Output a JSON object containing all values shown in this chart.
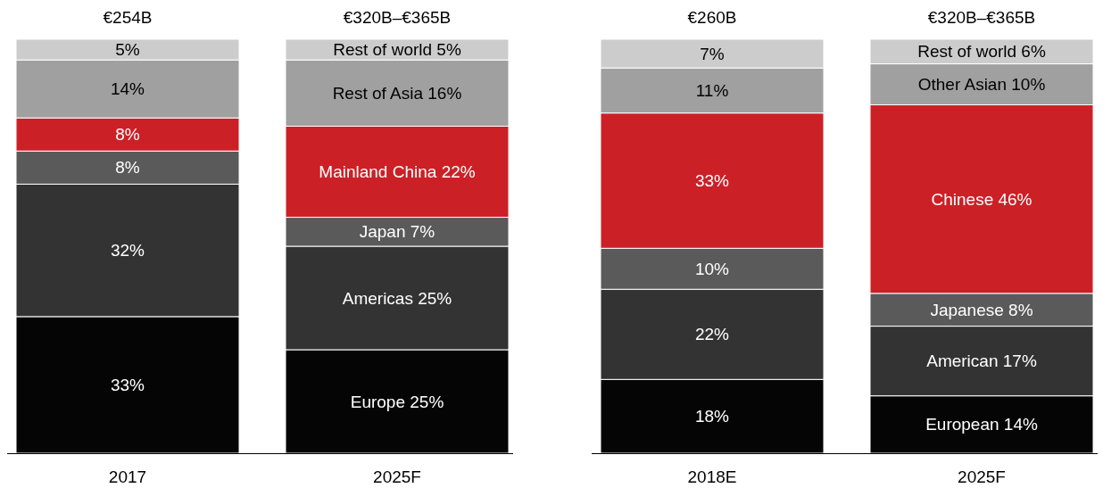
{
  "chart_data": [
    {
      "type": "bar",
      "stacked": true,
      "categories": [
        "2017",
        "2025F"
      ],
      "annotations": [
        "€254B",
        "€320B–€365B"
      ],
      "series": [
        {
          "color": "#050505",
          "values": [
            33,
            25
          ],
          "value_labels": [
            "33%",
            "Europe 25%"
          ]
        },
        {
          "color": "#333333",
          "values": [
            32,
            25
          ],
          "value_labels": [
            "32%",
            "Americas 25%"
          ]
        },
        {
          "color": "#5a5a5a",
          "values": [
            8,
            7
          ],
          "value_labels": [
            "8%",
            "Japan 7%"
          ]
        },
        {
          "color": "#cc2027",
          "values": [
            8,
            22
          ],
          "value_labels": [
            "8%",
            "Mainland China 22%"
          ]
        },
        {
          "color": "#a0a0a0",
          "values": [
            14,
            16
          ],
          "value_labels": [
            "14%",
            "Rest of Asia 16%"
          ]
        },
        {
          "color": "#cccccc",
          "values": [
            5,
            5
          ],
          "value_labels": [
            "5%",
            "Rest of world 5%"
          ]
        }
      ]
    },
    {
      "type": "bar",
      "stacked": true,
      "categories": [
        "2018E",
        "2025F"
      ],
      "annotations": [
        "€260B",
        "€320B–€365B"
      ],
      "series": [
        {
          "color": "#050505",
          "values": [
            18,
            14
          ],
          "value_labels": [
            "18%",
            "European 14%"
          ]
        },
        {
          "color": "#333333",
          "values": [
            22,
            17
          ],
          "value_labels": [
            "22%",
            "American 17%"
          ]
        },
        {
          "color": "#5a5a5a",
          "values": [
            10,
            8
          ],
          "value_labels": [
            "10%",
            "Japanese 8%"
          ]
        },
        {
          "color": "#cc2027",
          "values": [
            33,
            46
          ],
          "value_labels": [
            "33%",
            "Chinese 46%"
          ]
        },
        {
          "color": "#a0a0a0",
          "values": [
            11,
            10
          ],
          "value_labels": [
            "11%",
            "Other Asian 10%"
          ]
        },
        {
          "color": "#cccccc",
          "values": [
            7,
            6
          ],
          "value_labels": [
            "7%",
            "Rest of world 6%"
          ]
        }
      ]
    }
  ]
}
